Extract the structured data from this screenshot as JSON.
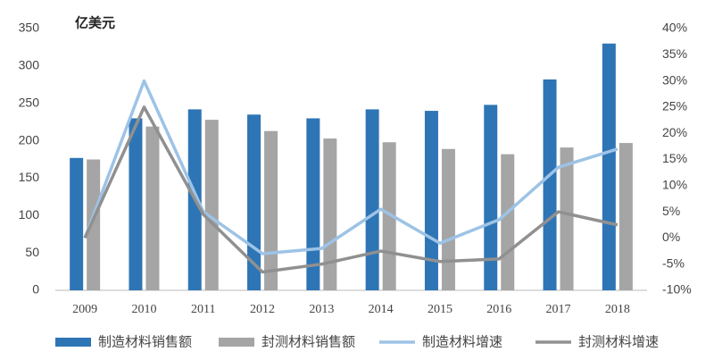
{
  "chart_data": {
    "type": "bar",
    "unit_label": "亿美元",
    "categories": [
      "2009",
      "2010",
      "2011",
      "2012",
      "2013",
      "2014",
      "2015",
      "2016",
      "2017",
      "2018"
    ],
    "series": [
      {
        "name": "制造材料销售额",
        "type": "bar",
        "color": "#2e75b6",
        "values": [
          177,
          230,
          242,
          235,
          230,
          242,
          240,
          248,
          282,
          330
        ]
      },
      {
        "name": "封测材料销售额",
        "type": "bar",
        "color": "#a5a5a5",
        "values": [
          175,
          219,
          228,
          213,
          203,
          198,
          189,
          182,
          191,
          197
        ]
      },
      {
        "name": "制造材料增速",
        "type": "line",
        "axis": "y2",
        "color": "#9dc3e6",
        "values": [
          0,
          30,
          5,
          -3,
          -2,
          5.5,
          -1,
          3.5,
          13.5,
          17
        ]
      },
      {
        "name": "封测材料增速",
        "type": "line",
        "axis": "y2",
        "color": "#909090",
        "values": [
          0,
          25,
          4.5,
          -6.5,
          -5,
          -2.5,
          -4.5,
          -4,
          5,
          2.5
        ]
      }
    ],
    "ylim": [
      0,
      350
    ],
    "yticks": [
      0,
      50,
      100,
      150,
      200,
      250,
      300,
      350
    ],
    "y2lim": [
      -10,
      40
    ],
    "y2ticks": [
      {
        "value": -10,
        "label": "-10%"
      },
      {
        "value": -5,
        "label": "-5%"
      },
      {
        "value": 0,
        "label": "0%"
      },
      {
        "value": 5,
        "label": "5%"
      },
      {
        "value": 10,
        "label": "10%"
      },
      {
        "value": 15,
        "label": "15%"
      },
      {
        "value": 20,
        "label": "20%"
      },
      {
        "value": 25,
        "label": "25%"
      },
      {
        "value": 30,
        "label": "30%"
      },
      {
        "value": 35,
        "label": "35%"
      },
      {
        "value": 40,
        "label": "40%"
      }
    ],
    "grid": false,
    "legend": "bottom"
  }
}
